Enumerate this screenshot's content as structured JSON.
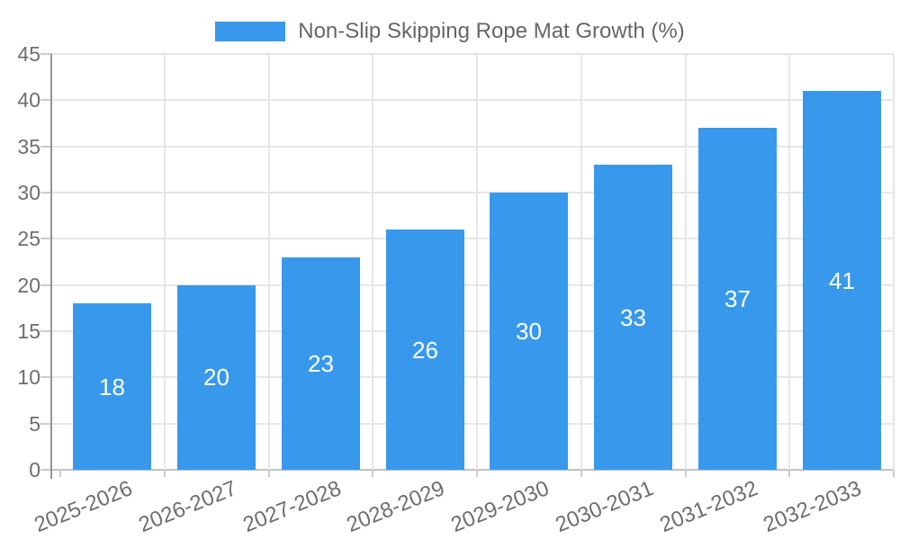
{
  "chart_data": {
    "type": "bar",
    "legend_label": "Non-Slip Skipping Rope Mat Growth (%)",
    "legend_position": "top",
    "categories": [
      "2025-2026",
      "2026-2027",
      "2027-2028",
      "2028-2029",
      "2029-2030",
      "2030-2031",
      "2031-2032",
      "2032-2033"
    ],
    "values": [
      18,
      20,
      23,
      26,
      30,
      33,
      37,
      41
    ],
    "ylim": [
      0,
      45
    ],
    "y_tick_step": 5,
    "y_ticks": [
      "0",
      "5",
      "10",
      "15",
      "20",
      "25",
      "30",
      "35",
      "40",
      "45"
    ],
    "grid": true,
    "x_label_rotation_deg": -22,
    "colors": {
      "bar": "#3899EC",
      "bar_label": "#FFFFFF",
      "axis_text": "#6E6E6E",
      "legend_text": "#666666",
      "grid": "#E6E6E6",
      "zero_line": "#C2C2C2",
      "axis_line": "#949494",
      "tick": "#CCCCCC"
    }
  }
}
